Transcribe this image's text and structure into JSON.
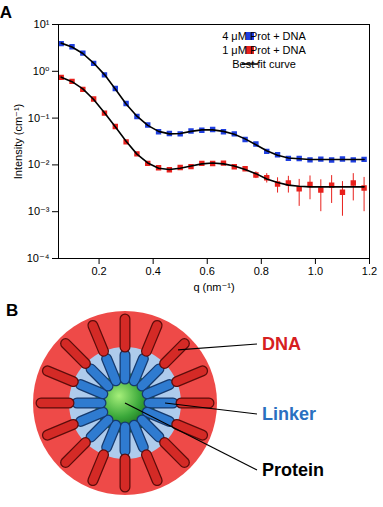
{
  "chart_data": {
    "type": "scatter",
    "panel": "A",
    "x_label": "q (nm⁻¹)",
    "y_label": "Intensity (cm⁻¹)",
    "log": "y",
    "grid": false,
    "legend": "top-right",
    "xlim": [
      0.05,
      1.2
    ],
    "xticks": [
      0.2,
      0.4,
      0.6,
      0.8,
      {
        "value": 1,
        "label": "1.0"
      },
      1.2
    ],
    "ylim": [
      0.0001,
      10
    ],
    "yticks": [
      {
        "value": 0.0001,
        "label": "10⁻⁴"
      },
      {
        "value": 0.001,
        "label": "10⁻³"
      },
      {
        "value": 0.01,
        "label": "10⁻²"
      },
      {
        "value": 0.1,
        "label": "10⁻¹"
      },
      {
        "value": 1,
        "label": "10⁰"
      },
      {
        "value": 10,
        "label": "10¹"
      }
    ],
    "x": [
      0.06,
      0.1,
      0.14,
      0.18,
      0.22,
      0.26,
      0.3,
      0.34,
      0.38,
      0.42,
      0.46,
      0.5,
      0.54,
      0.58,
      0.62,
      0.66,
      0.7,
      0.74,
      0.78,
      0.82,
      0.86,
      0.9,
      0.94,
      0.98,
      1.02,
      1.06,
      1.1,
      1.14,
      1.18
    ],
    "series": [
      {
        "name": "4 μM Prot + DNA",
        "color": "#1f3fe0",
        "type": "scatter",
        "marker": "square",
        "values": [
          3.9,
          3.35,
          2.45,
          1.48,
          0.84,
          0.43,
          0.205,
          0.108,
          0.071,
          0.051,
          0.047,
          0.046,
          0.053,
          0.055,
          0.057,
          0.051,
          0.046,
          0.035,
          0.028,
          0.0195,
          0.0165,
          0.0138,
          0.0137,
          0.0128,
          0.0133,
          0.0127,
          0.0134,
          0.0128,
          0.0131
        ]
      },
      {
        "name": "1 μM Prot + DNA",
        "color": "#e8201c",
        "type": "scatter",
        "marker": "square",
        "values": [
          0.74,
          0.61,
          0.41,
          0.255,
          0.128,
          0.066,
          0.031,
          0.0172,
          0.0108,
          0.0087,
          0.0079,
          0.0088,
          0.0092,
          0.0108,
          0.0107,
          0.0109,
          0.0091,
          0.0083,
          0.0061,
          0.0053,
          0.0039,
          0.0041,
          0.0031,
          0.0038,
          0.0029,
          0.0037,
          0.0026,
          0.0041,
          0.0032
        ],
        "errors": [
          0,
          0,
          0,
          0,
          0,
          0,
          0,
          0,
          0,
          0,
          0,
          0,
          0,
          0,
          0,
          0,
          0.0008,
          0.0009,
          0.001,
          0.0012,
          0.0014,
          0.0016,
          0.0018,
          0.002,
          0.0019,
          0.0022,
          0.0018,
          0.0024,
          0.0022
        ]
      },
      {
        "name": "Best fit curve",
        "color": "#000000",
        "type": "line",
        "line_style": "solid",
        "values": [
          4.0,
          3.3,
          2.4,
          1.5,
          0.85,
          0.42,
          0.2,
          0.11,
          0.07,
          0.052,
          0.046,
          0.047,
          0.052,
          0.056,
          0.056,
          0.052,
          0.045,
          0.036,
          0.027,
          0.02,
          0.016,
          0.014,
          0.0135,
          0.013,
          0.013,
          0.013,
          0.013,
          0.013,
          0.013
        ]
      },
      {
        "name": "Best fit curve",
        "color": "#000000",
        "type": "line",
        "line_style": "solid",
        "values": [
          0.75,
          0.6,
          0.42,
          0.25,
          0.13,
          0.065,
          0.032,
          0.017,
          0.011,
          0.0085,
          0.008,
          0.0085,
          0.0095,
          0.0105,
          0.011,
          0.0105,
          0.0095,
          0.008,
          0.0065,
          0.005,
          0.0042,
          0.0037,
          0.0035,
          0.0034,
          0.0034,
          0.0034,
          0.0034,
          0.0034,
          0.0034
        ]
      }
    ]
  },
  "diagram": {
    "panel": "B",
    "labels": [
      "DNA",
      "Linker",
      "Protein"
    ]
  }
}
